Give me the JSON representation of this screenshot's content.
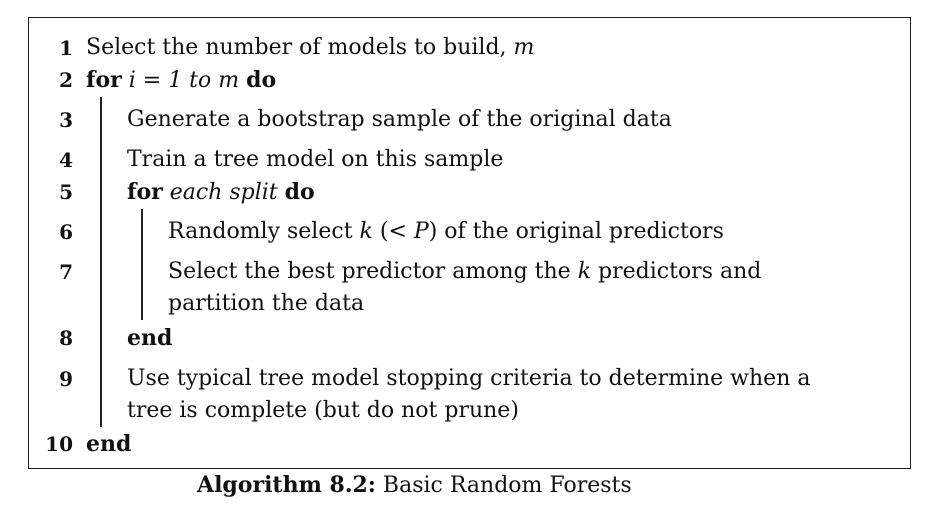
{
  "lines": [
    {
      "num": "1",
      "text": "Select the number of models to build, ",
      "var": "m"
    },
    {
      "num": "2",
      "kw": "for",
      "cond": "i = 1 to m",
      "kw2": "do"
    },
    {
      "num": "3",
      "text": "Generate a bootstrap sample of the original data"
    },
    {
      "num": "4",
      "text": "Train a tree model on this sample"
    },
    {
      "num": "5",
      "kw": "for",
      "cond": "each split",
      "kw2": "do"
    },
    {
      "num": "6",
      "pre": "Randomly select ",
      "var": "k",
      "mid": " (< ",
      "var2": "P",
      "post": ") of the original predictors"
    },
    {
      "num": "7",
      "pre": "Select the best predictor among the ",
      "var": "k",
      "post": " predictors and",
      "cont": "partition the data"
    },
    {
      "num": "8",
      "kw": "end"
    },
    {
      "num": "9",
      "text": "Use typical tree model stopping criteria to determine when a",
      "cont": "tree is complete (but do not prune)"
    },
    {
      "num": "10",
      "kw": "end"
    }
  ],
  "caption": {
    "label": "Algorithm 8.2:",
    "title": "Basic Random Forests"
  }
}
